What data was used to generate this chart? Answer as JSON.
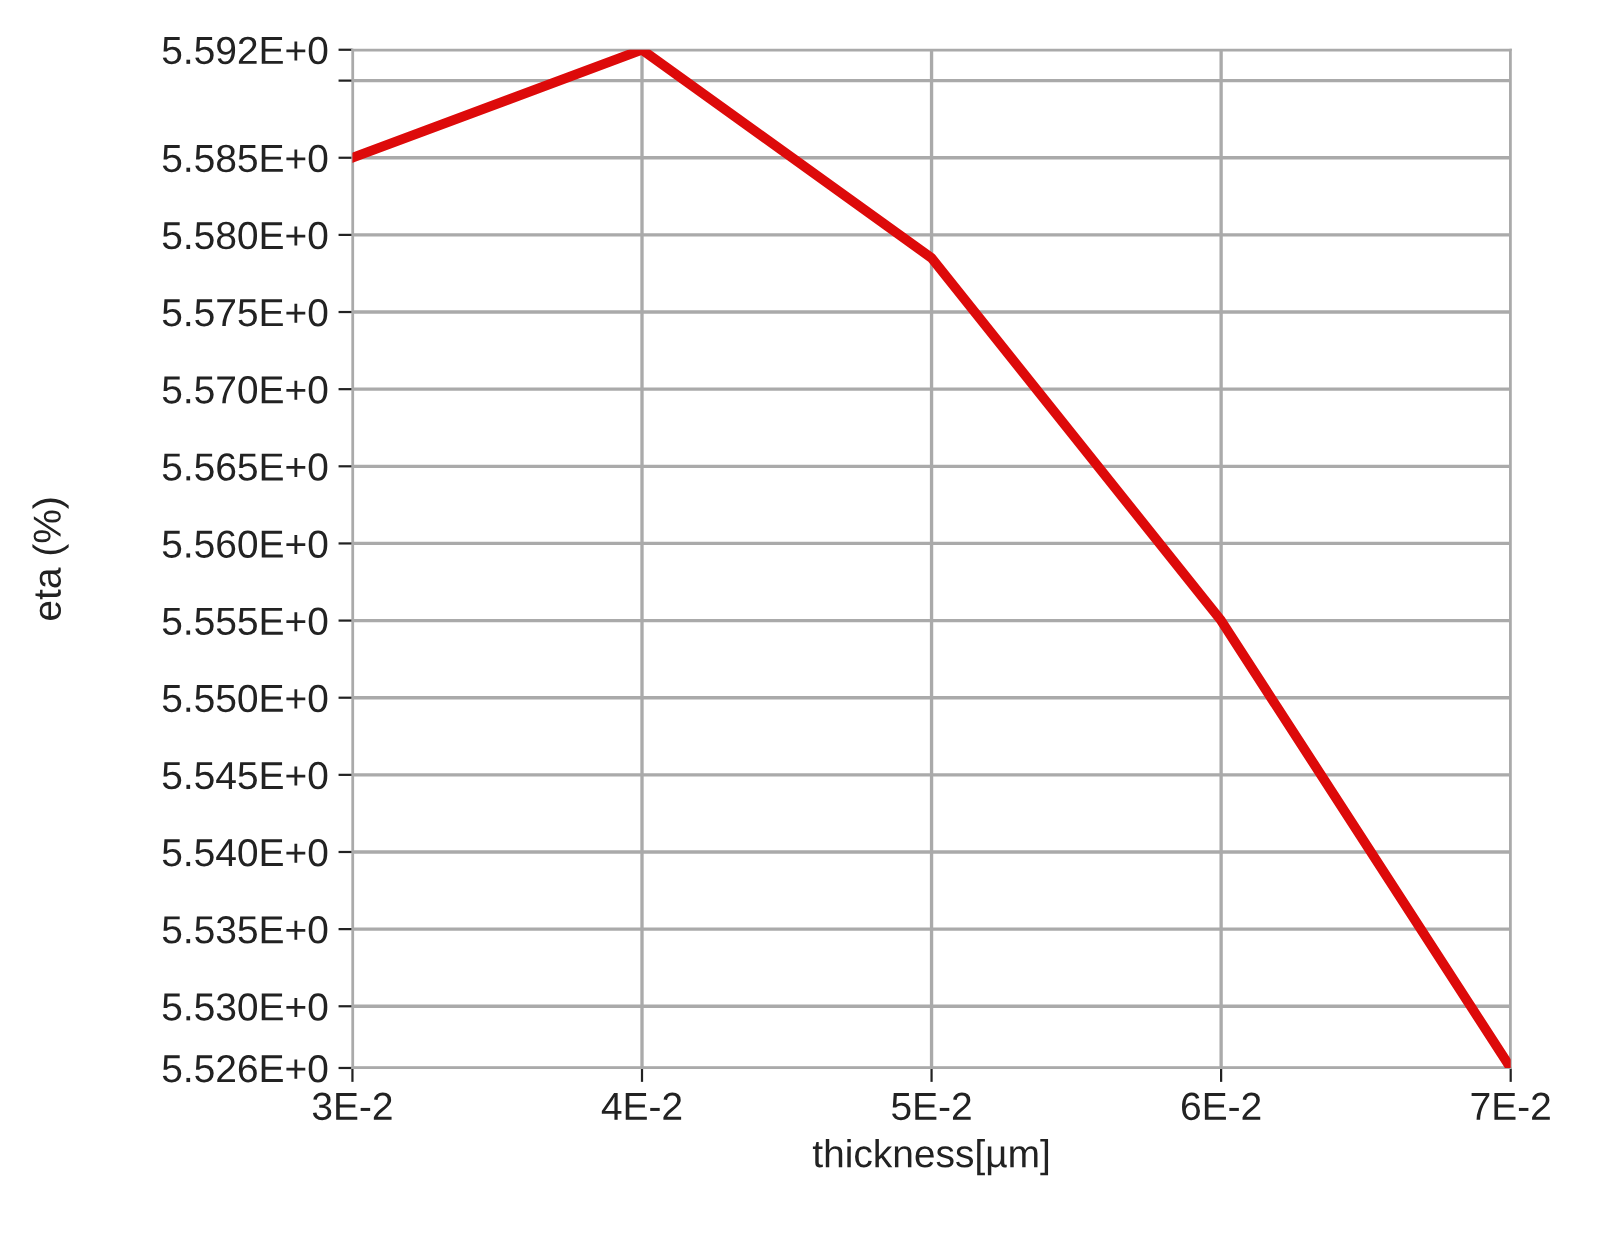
{
  "chart_data": {
    "type": "line",
    "xlabel": "thickness[µm]",
    "ylabel": "eta (%)",
    "x": [
      0.03,
      0.04,
      0.05,
      0.06,
      0.07
    ],
    "series": [
      {
        "color": "#dd0a0a",
        "values": [
          5.585,
          5.592,
          5.5785,
          5.555,
          5.526
        ]
      }
    ],
    "xlim": [
      0.03,
      0.07
    ],
    "xticks": [
      {
        "value": 0.03,
        "label": "3E-2"
      },
      {
        "value": 0.04,
        "label": "4E-2"
      },
      {
        "value": 0.05,
        "label": "5E-2"
      },
      {
        "value": 0.06,
        "label": "6E-2"
      },
      {
        "value": 0.07,
        "label": "7E-2"
      }
    ],
    "ylim": [
      5.526,
      5.592
    ],
    "yticks": [
      {
        "value": 5.526,
        "label": "5.526E+0"
      },
      {
        "value": 5.53,
        "label": "5.530E+0"
      },
      {
        "value": 5.535,
        "label": "5.535E+0"
      },
      {
        "value": 5.54,
        "label": "5.540E+0"
      },
      {
        "value": 5.545,
        "label": "5.545E+0"
      },
      {
        "value": 5.55,
        "label": "5.550E+0"
      },
      {
        "value": 5.555,
        "label": "5.555E+0"
      },
      {
        "value": 5.56,
        "label": "5.560E+0"
      },
      {
        "value": 5.565,
        "label": "5.565E+0"
      },
      {
        "value": 5.57,
        "label": "5.570E+0"
      },
      {
        "value": 5.575,
        "label": "5.575E+0"
      },
      {
        "value": 5.58,
        "label": "5.580E+0"
      },
      {
        "value": 5.585,
        "label": "5.585E+0"
      },
      {
        "value": 5.59,
        "label": null
      },
      {
        "value": 5.592,
        "label": "5.592E+0"
      }
    ],
    "grid": true,
    "marker": "none",
    "line_style": "solid"
  }
}
